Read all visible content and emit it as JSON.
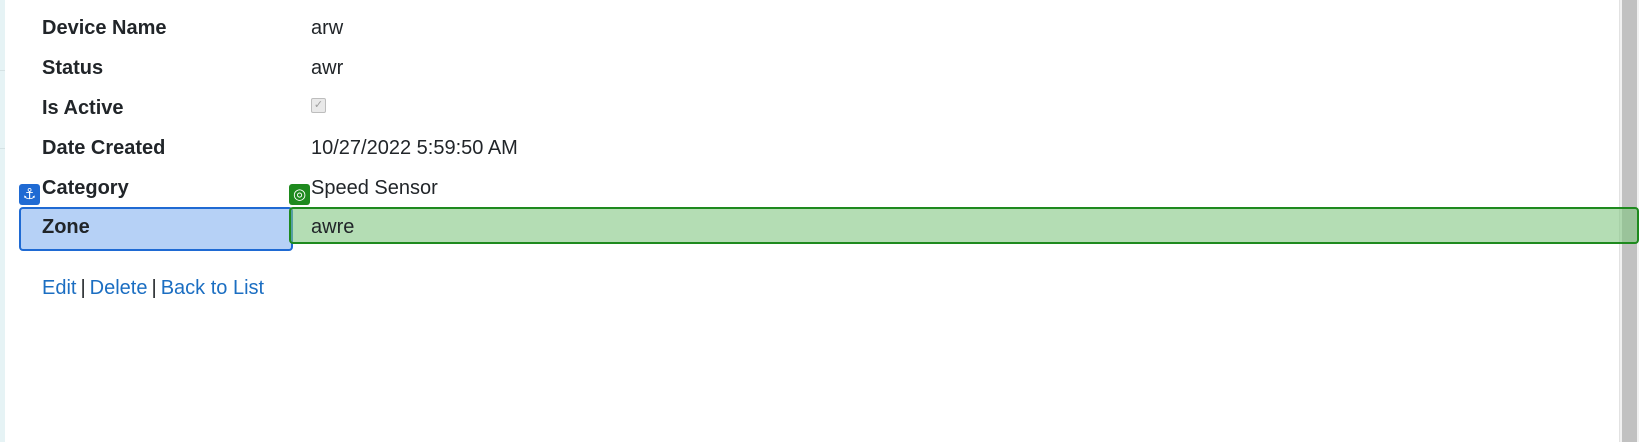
{
  "details": {
    "rows": [
      {
        "label": "Device Name",
        "value": "arw"
      },
      {
        "label": "Status",
        "value": "awr"
      },
      {
        "label": "Is Active",
        "value_type": "checkbox",
        "checked": true
      },
      {
        "label": "Date Created",
        "value": "10/27/2022 5:59:50 AM"
      },
      {
        "label": "Category",
        "value": "Speed Sensor"
      },
      {
        "label": "Zone",
        "value": "awre"
      }
    ]
  },
  "actions": {
    "edit": "Edit",
    "delete": "Delete",
    "back_to_list": "Back to List",
    "separator": "|"
  },
  "overlays": {
    "anchor_badge_icon": "anchor-icon",
    "target_badge_icon": "target-icon",
    "anchor_color": "#1f6ad3",
    "target_color": "#1e8a1e"
  },
  "colors": {
    "link": "#1b6ec2",
    "text": "#212529"
  }
}
